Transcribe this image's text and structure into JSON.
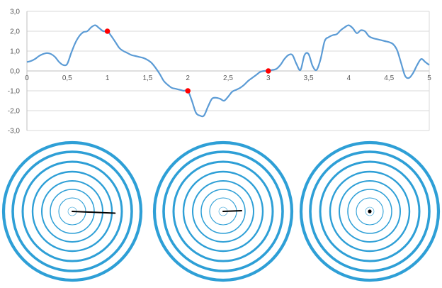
{
  "chart_data": {
    "type": "line",
    "title": "",
    "xlabel": "",
    "ylabel": "",
    "xlim": [
      0,
      5
    ],
    "ylim": [
      -3,
      3
    ],
    "x_ticks": [
      "0",
      "0,5",
      "1",
      "1,5",
      "2",
      "2,5",
      "3",
      "3,5",
      "4",
      "4,5",
      "5"
    ],
    "y_ticks": [
      "3,0",
      "2,0",
      "1,0",
      "0,0",
      "-1,0",
      "-2,0",
      "-3,0"
    ],
    "grid": "horizontal",
    "series": [
      {
        "color": "#5b9bd5",
        "x": [
          0,
          0.05,
          0.1,
          0.15,
          0.2,
          0.25,
          0.3,
          0.35,
          0.4,
          0.45,
          0.5,
          0.55,
          0.6,
          0.65,
          0.7,
          0.75,
          0.8,
          0.85,
          0.9,
          0.95,
          1.0,
          1.05,
          1.1,
          1.15,
          1.2,
          1.25,
          1.3,
          1.35,
          1.4,
          1.45,
          1.5,
          1.55,
          1.6,
          1.65,
          1.7,
          1.75,
          1.8,
          1.85,
          1.9,
          1.95,
          2.0,
          2.05,
          2.1,
          2.15,
          2.2,
          2.25,
          2.3,
          2.35,
          2.4,
          2.45,
          2.5,
          2.55,
          2.6,
          2.65,
          2.7,
          2.75,
          2.8,
          2.85,
          2.9,
          2.95,
          3.0,
          3.05,
          3.1,
          3.15,
          3.2,
          3.25,
          3.3,
          3.35,
          3.4,
          3.45,
          3.5,
          3.55,
          3.6,
          3.65,
          3.7,
          3.75,
          3.8,
          3.85,
          3.9,
          3.95,
          4.0,
          4.05,
          4.1,
          4.15,
          4.2,
          4.25,
          4.3,
          4.35,
          4.4,
          4.45,
          4.5,
          4.55,
          4.6,
          4.65,
          4.7,
          4.75,
          4.8,
          4.85,
          4.9,
          4.95,
          5.0
        ],
        "y": [
          0.45,
          0.5,
          0.6,
          0.75,
          0.85,
          0.9,
          0.85,
          0.7,
          0.45,
          0.3,
          0.35,
          0.9,
          1.4,
          1.75,
          1.95,
          2.0,
          2.2,
          2.3,
          2.15,
          2.0,
          2.0,
          1.75,
          1.45,
          1.15,
          1.0,
          0.9,
          0.8,
          0.75,
          0.7,
          0.65,
          0.55,
          0.4,
          0.15,
          -0.15,
          -0.5,
          -0.7,
          -0.85,
          -0.9,
          -0.95,
          -1.0,
          -1.0,
          -1.5,
          -2.1,
          -2.25,
          -2.25,
          -1.8,
          -1.4,
          -1.35,
          -1.4,
          -1.5,
          -1.3,
          -1.05,
          -0.95,
          -0.85,
          -0.7,
          -0.5,
          -0.35,
          -0.2,
          -0.05,
          0.0,
          0.0,
          0.05,
          0.1,
          0.3,
          0.6,
          0.8,
          0.8,
          0.35,
          0.05,
          0.8,
          0.85,
          0.25,
          0.05,
          0.6,
          1.5,
          1.7,
          1.8,
          1.85,
          2.05,
          2.2,
          2.3,
          2.15,
          1.9,
          2.05,
          2.0,
          1.75,
          1.65,
          1.6,
          1.55,
          1.5,
          1.45,
          1.35,
          1.05,
          0.4,
          -0.25,
          -0.35,
          -0.1,
          0.3,
          0.6,
          0.45,
          0.3
        ]
      }
    ],
    "markers": {
      "color": "#ff0000",
      "x": [
        1.0,
        2.0,
        3.0
      ],
      "y": [
        2.0,
        -1.0,
        0.0
      ]
    }
  },
  "dials": [
    {
      "needle_fraction": 0.58,
      "needle_end_dy": 2.5
    },
    {
      "needle_fraction": 0.25,
      "needle_end_dy": -1.0
    },
    {
      "needle_fraction": 0.0,
      "needle_end_dy": 0.0
    }
  ],
  "colors": {
    "line": "#5b9bd5",
    "ring": "#2e9fd6",
    "axis": "#bfbfbf",
    "grid": "#d9d9d9",
    "marker": "#ff0000",
    "needle": "#000000",
    "tick_text": "#595959"
  }
}
